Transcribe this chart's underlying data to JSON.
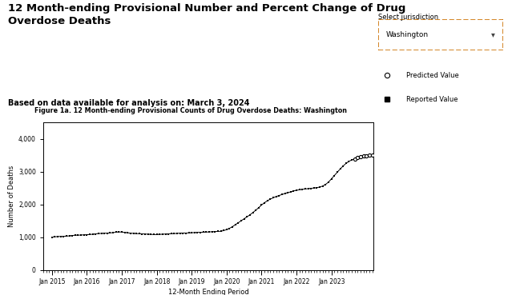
{
  "title_main": "12 Month-ending Provisional Number and Percent Change of Drug\nOverdose Deaths",
  "subtitle": "Based on data available for analysis on: March 3, 2024",
  "chart_title": "Figure 1a. 12 Month-ending Provisional Counts of Drug Overdose Deaths: Washington",
  "xlabel": "12-Month Ending Period",
  "ylabel": "Number of Deaths",
  "ylim": [
    0,
    4500
  ],
  "yticks": [
    0,
    1000,
    2000,
    3000,
    4000
  ],
  "ytick_labels": [
    "0",
    "1,000",
    "2,000",
    "3,000",
    "4,000"
  ],
  "jurisdiction_label": "Select jurisdiction",
  "jurisdiction_value": "Washington",
  "legend_predicted": "Predicted Value",
  "legend_reported": "Reported Value",
  "chart_title_bg": "#c9dff0",
  "plot_bg": "#ffffff",
  "fig_bg": "#ffffff",
  "reported_color": "#000000",
  "predicted_color": "#000000",
  "reported_data": [
    [
      2015,
      1,
      1000
    ],
    [
      2015,
      2,
      1010
    ],
    [
      2015,
      3,
      1020
    ],
    [
      2015,
      4,
      1020
    ],
    [
      2015,
      5,
      1025
    ],
    [
      2015,
      6,
      1030
    ],
    [
      2015,
      7,
      1040
    ],
    [
      2015,
      8,
      1050
    ],
    [
      2015,
      9,
      1060
    ],
    [
      2015,
      10,
      1060
    ],
    [
      2015,
      11,
      1065
    ],
    [
      2015,
      12,
      1070
    ],
    [
      2016,
      1,
      1075
    ],
    [
      2016,
      2,
      1080
    ],
    [
      2016,
      3,
      1090
    ],
    [
      2016,
      4,
      1100
    ],
    [
      2016,
      5,
      1110
    ],
    [
      2016,
      6,
      1115
    ],
    [
      2016,
      7,
      1120
    ],
    [
      2016,
      8,
      1120
    ],
    [
      2016,
      9,
      1130
    ],
    [
      2016,
      10,
      1140
    ],
    [
      2016,
      11,
      1150
    ],
    [
      2016,
      12,
      1160
    ],
    [
      2017,
      1,
      1155
    ],
    [
      2017,
      2,
      1145
    ],
    [
      2017,
      3,
      1135
    ],
    [
      2017,
      4,
      1120
    ],
    [
      2017,
      5,
      1115
    ],
    [
      2017,
      6,
      1110
    ],
    [
      2017,
      7,
      1105
    ],
    [
      2017,
      8,
      1100
    ],
    [
      2017,
      9,
      1095
    ],
    [
      2017,
      10,
      1090
    ],
    [
      2017,
      11,
      1085
    ],
    [
      2017,
      12,
      1080
    ],
    [
      2018,
      1,
      1080
    ],
    [
      2018,
      2,
      1085
    ],
    [
      2018,
      3,
      1090
    ],
    [
      2018,
      4,
      1095
    ],
    [
      2018,
      5,
      1100
    ],
    [
      2018,
      6,
      1105
    ],
    [
      2018,
      7,
      1110
    ],
    [
      2018,
      8,
      1115
    ],
    [
      2018,
      9,
      1120
    ],
    [
      2018,
      10,
      1125
    ],
    [
      2018,
      11,
      1125
    ],
    [
      2018,
      12,
      1130
    ],
    [
      2019,
      1,
      1135
    ],
    [
      2019,
      2,
      1140
    ],
    [
      2019,
      3,
      1145
    ],
    [
      2019,
      4,
      1148
    ],
    [
      2019,
      5,
      1150
    ],
    [
      2019,
      6,
      1155
    ],
    [
      2019,
      7,
      1160
    ],
    [
      2019,
      8,
      1165
    ],
    [
      2019,
      9,
      1170
    ],
    [
      2019,
      10,
      1175
    ],
    [
      2019,
      11,
      1180
    ],
    [
      2019,
      12,
      1200
    ],
    [
      2020,
      1,
      1230
    ],
    [
      2020,
      2,
      1270
    ],
    [
      2020,
      3,
      1320
    ],
    [
      2020,
      4,
      1380
    ],
    [
      2020,
      5,
      1440
    ],
    [
      2020,
      6,
      1500
    ],
    [
      2020,
      7,
      1560
    ],
    [
      2020,
      8,
      1620
    ],
    [
      2020,
      9,
      1680
    ],
    [
      2020,
      10,
      1750
    ],
    [
      2020,
      11,
      1820
    ],
    [
      2020,
      12,
      1900
    ],
    [
      2021,
      1,
      1980
    ],
    [
      2021,
      2,
      2050
    ],
    [
      2021,
      3,
      2110
    ],
    [
      2021,
      4,
      2160
    ],
    [
      2021,
      5,
      2200
    ],
    [
      2021,
      6,
      2240
    ],
    [
      2021,
      7,
      2270
    ],
    [
      2021,
      8,
      2300
    ],
    [
      2021,
      9,
      2330
    ],
    [
      2021,
      10,
      2360
    ],
    [
      2021,
      11,
      2380
    ],
    [
      2021,
      12,
      2410
    ],
    [
      2022,
      1,
      2430
    ],
    [
      2022,
      2,
      2445
    ],
    [
      2022,
      3,
      2460
    ],
    [
      2022,
      4,
      2470
    ],
    [
      2022,
      5,
      2480
    ],
    [
      2022,
      6,
      2490
    ],
    [
      2022,
      7,
      2500
    ],
    [
      2022,
      8,
      2510
    ],
    [
      2022,
      9,
      2530
    ],
    [
      2022,
      10,
      2560
    ],
    [
      2022,
      11,
      2610
    ],
    [
      2022,
      12,
      2680
    ],
    [
      2023,
      1,
      2780
    ],
    [
      2023,
      2,
      2880
    ],
    [
      2023,
      3,
      2980
    ],
    [
      2023,
      4,
      3080
    ],
    [
      2023,
      5,
      3170
    ],
    [
      2023,
      6,
      3250
    ],
    [
      2023,
      7,
      3310
    ],
    [
      2023,
      8,
      3360
    ]
  ],
  "predicted_data": [
    [
      2023,
      9,
      3390
    ],
    [
      2023,
      10,
      3420
    ],
    [
      2023,
      11,
      3450
    ],
    [
      2023,
      12,
      3470
    ],
    [
      2024,
      1,
      3480
    ],
    [
      2024,
      2,
      3500
    ],
    [
      2024,
      3,
      3510
    ]
  ],
  "xtick_dates": [
    "Jan 2015",
    "Jan 2016",
    "Jan 2017",
    "Jan 2018",
    "Jan 2019",
    "Jan 2020",
    "Jan 2021",
    "Jan 2022",
    "Jan 2023"
  ],
  "xtick_values": [
    2015.0,
    2016.0,
    2017.0,
    2018.0,
    2019.0,
    2020.0,
    2021.0,
    2022.0,
    2023.0
  ],
  "xlim": [
    2014.75,
    2024.2
  ]
}
